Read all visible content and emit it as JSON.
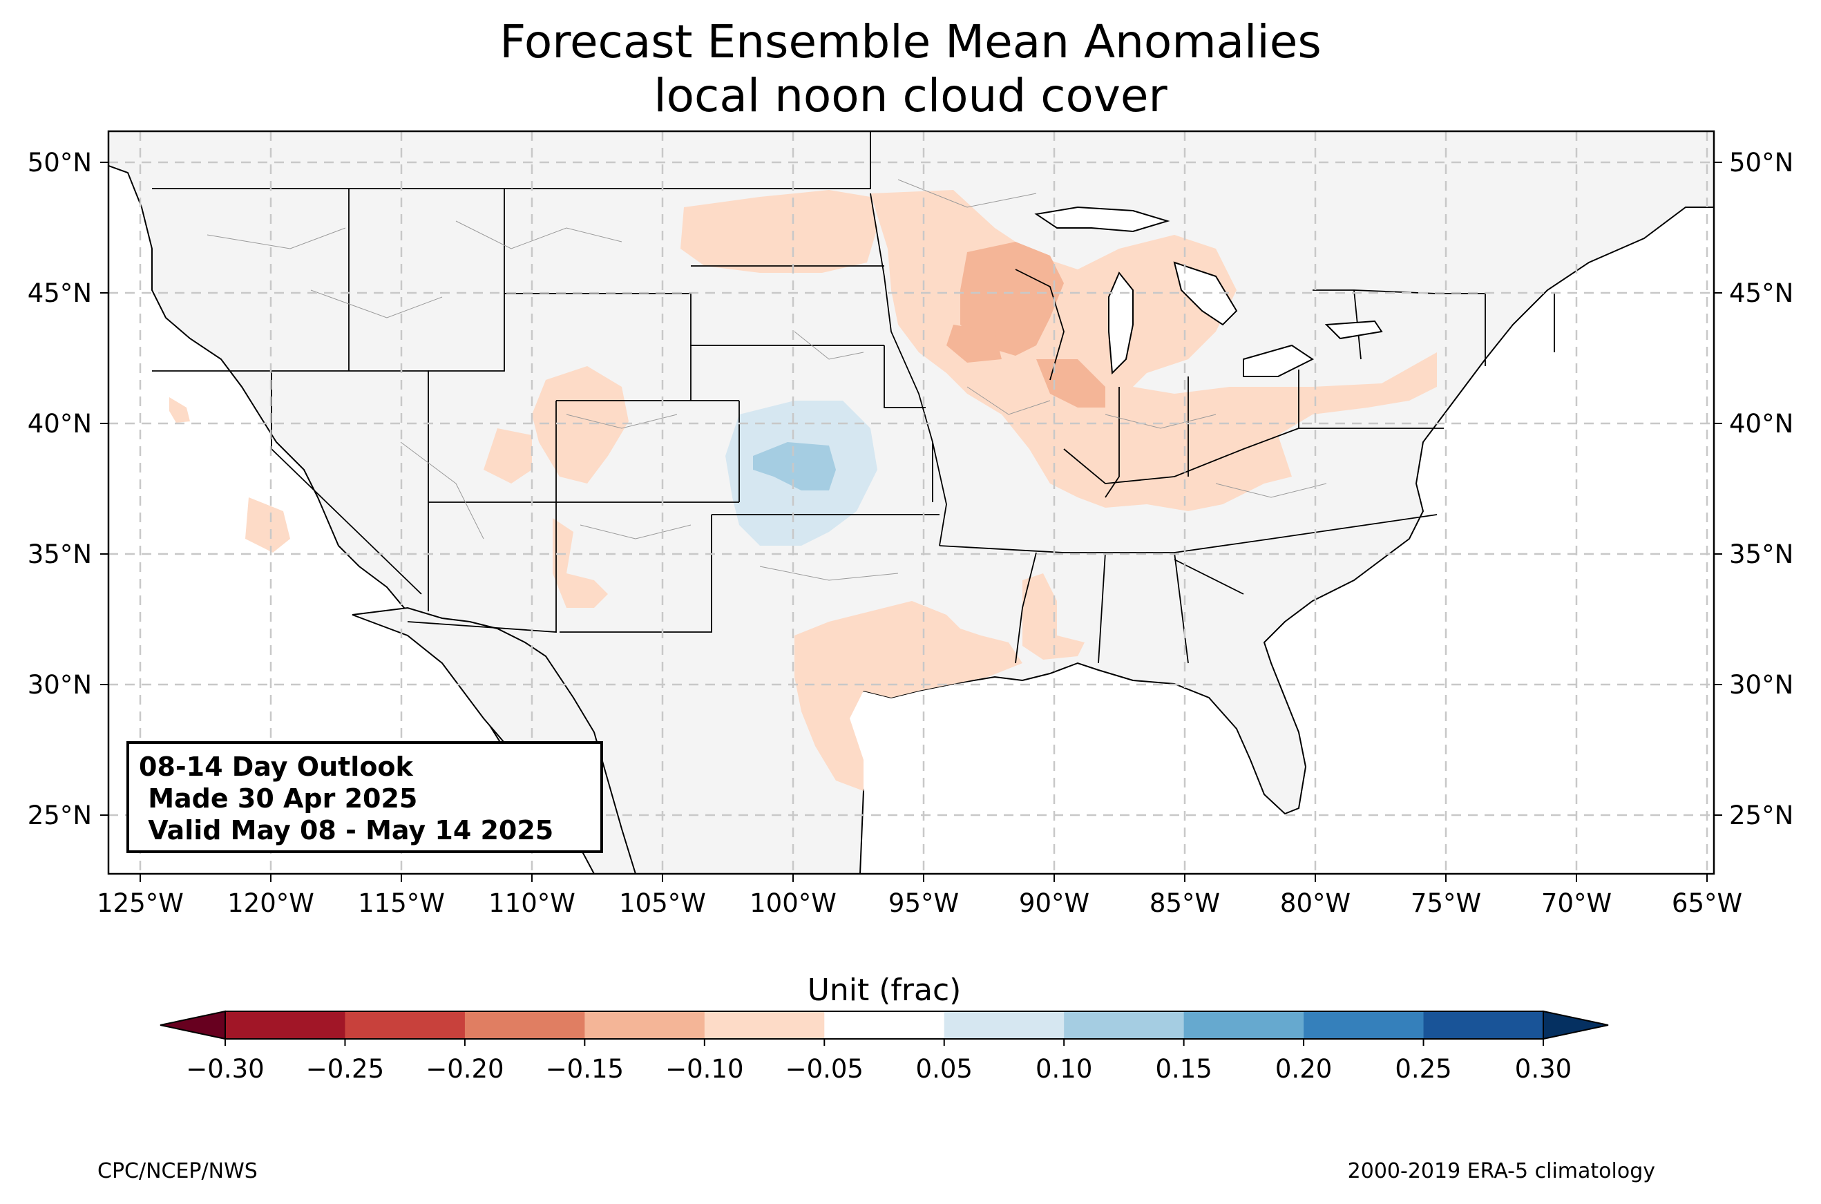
{
  "title_line1": "Forecast Ensemble Mean Anomalies",
  "title_line2": "local noon cloud cover",
  "outlook": {
    "line1": "08-14 Day Outlook",
    "line2": " Made 30 Apr 2025",
    "line3": " Valid May 08 - May 14 2025"
  },
  "lat_labels": [
    "25°N",
    "30°N",
    "35°N",
    "40°N",
    "45°N",
    "50°N"
  ],
  "lon_labels": [
    "125°W",
    "120°W",
    "115°W",
    "110°W",
    "105°W",
    "100°W",
    "95°W",
    "90°W",
    "85°W",
    "80°W",
    "75°W",
    "70°W",
    "65°W"
  ],
  "colorbar": {
    "label": "Unit (frac)",
    "ticks": [
      "−0.30",
      "−0.25",
      "−0.20",
      "−0.15",
      "−0.10",
      "−0.05",
      "0.05",
      "0.10",
      "0.15",
      "0.20",
      "0.25",
      "0.30"
    ],
    "colors": [
      "#a11627",
      "#c8413c",
      "#e07e62",
      "#f4b597",
      "#fddbc7",
      "#ffffff",
      "#d6e7f1",
      "#a5cde2",
      "#66a9cf",
      "#3580bb",
      "#195498"
    ],
    "under_color": "#67001f",
    "over_color": "#053061"
  },
  "footer_left": "CPC/NCEP/NWS",
  "footer_right": "2000-2019 ERA-5 climatology",
  "map_colors": {
    "land": "#f4f4f4",
    "anomaly_neg_0_05_0_10": "#fddbc7",
    "anomaly_neg_0_10_0_15": "#f4b597",
    "anomaly_pos_0_05_0_10": "#d6e7f1",
    "anomaly_pos_0_10_0_15": "#a5cde2"
  }
}
